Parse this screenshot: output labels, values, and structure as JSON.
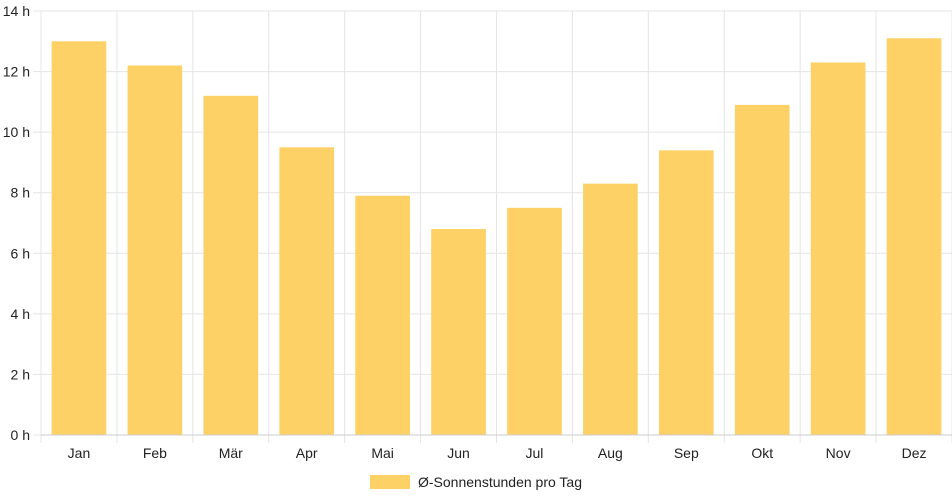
{
  "chart_data": {
    "type": "bar",
    "categories": [
      "Jan",
      "Feb",
      "Mär",
      "Apr",
      "Mai",
      "Jun",
      "Jul",
      "Aug",
      "Sep",
      "Okt",
      "Nov",
      "Dez"
    ],
    "series": [
      {
        "name": "Ø-Sonnenstunden pro Tag",
        "values": [
          13.0,
          12.2,
          11.2,
          9.5,
          7.9,
          6.8,
          7.5,
          8.3,
          9.4,
          10.9,
          12.3,
          13.1
        ],
        "color": "#fed166"
      }
    ],
    "ylim": [
      0,
      14
    ],
    "yticks": [
      "0 h",
      "2 h",
      "4 h",
      "6 h",
      "8 h",
      "10 h",
      "12 h",
      "14 h"
    ],
    "grid": true,
    "legend": "bottom",
    "colors": {
      "grid": "#e4e4e4",
      "axis": "#cccccc",
      "text": "#222222"
    }
  }
}
